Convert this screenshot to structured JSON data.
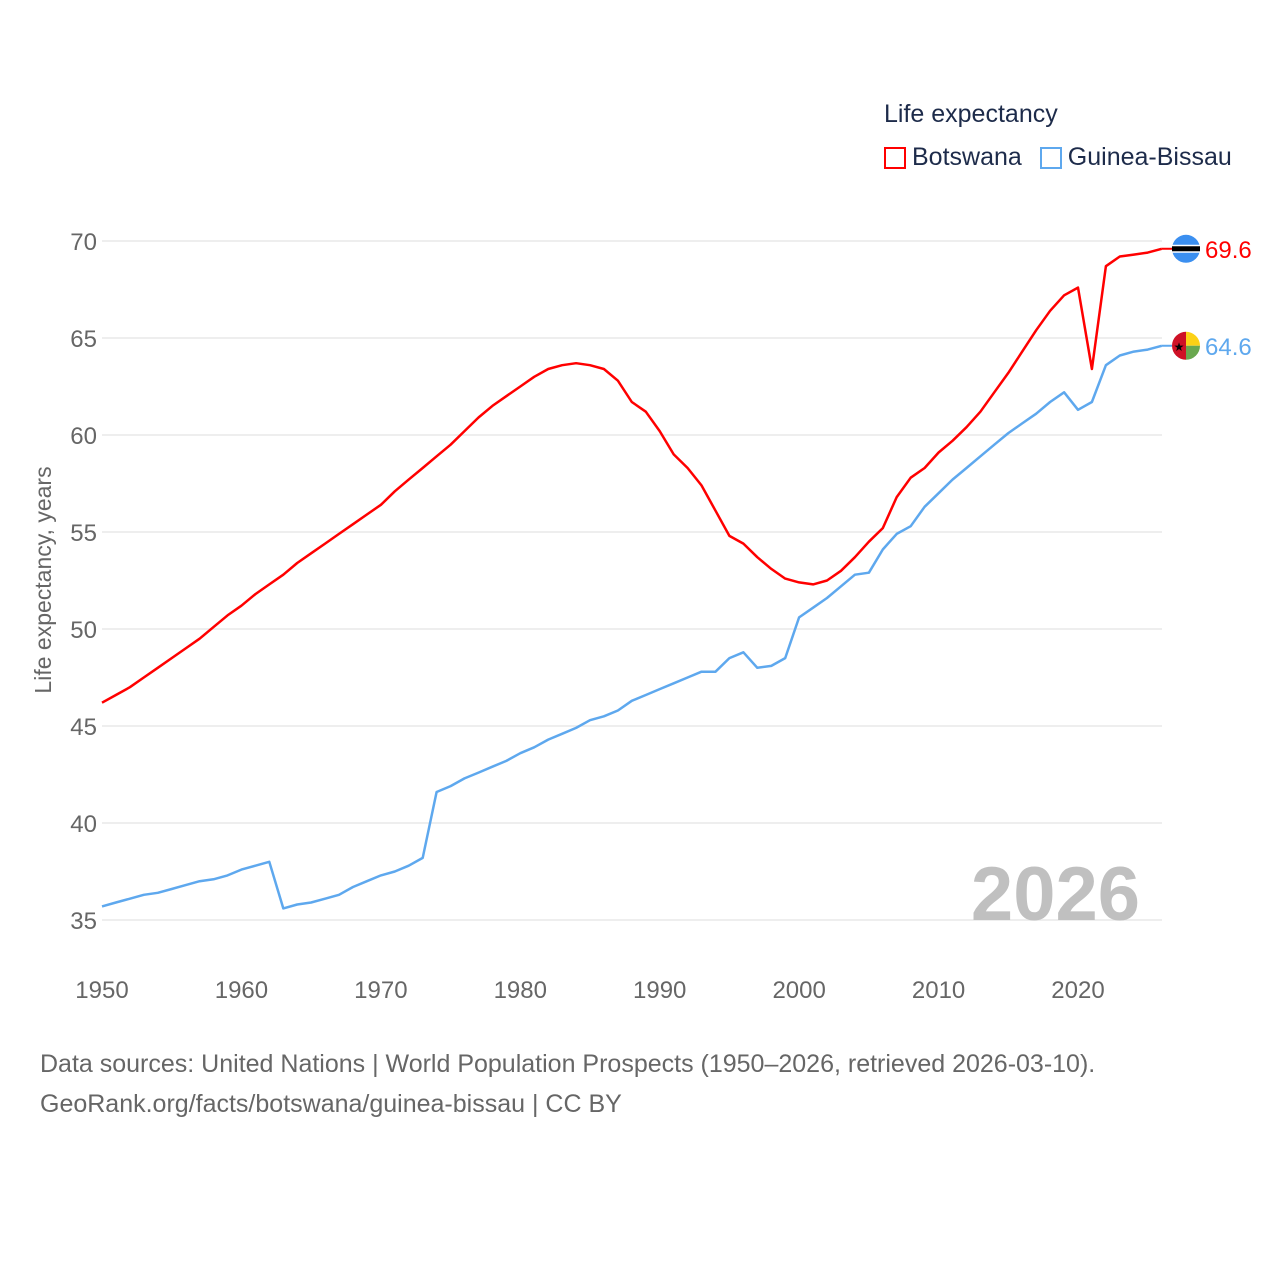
{
  "chart_data": {
    "type": "line",
    "title": "Life expectancy",
    "ylabel": "Life expectancy, years",
    "xlabel": "",
    "xlim": [
      1950,
      2026
    ],
    "ylim": [
      33,
      70.5
    ],
    "yticks": [
      35,
      40,
      45,
      50,
      55,
      60,
      65,
      70
    ],
    "xticks": [
      1950,
      1960,
      1970,
      1980,
      1990,
      2000,
      2010,
      2020
    ],
    "grid": true,
    "legend_position": "top-right",
    "year_watermark": "2026",
    "x": [
      1950,
      1951,
      1952,
      1953,
      1954,
      1955,
      1956,
      1957,
      1958,
      1959,
      1960,
      1961,
      1962,
      1963,
      1964,
      1965,
      1966,
      1967,
      1968,
      1969,
      1970,
      1971,
      1972,
      1973,
      1974,
      1975,
      1976,
      1977,
      1978,
      1979,
      1980,
      1981,
      1982,
      1983,
      1984,
      1985,
      1986,
      1987,
      1988,
      1989,
      1990,
      1991,
      1992,
      1993,
      1994,
      1995,
      1996,
      1997,
      1998,
      1999,
      2000,
      2001,
      2002,
      2003,
      2004,
      2005,
      2006,
      2007,
      2008,
      2009,
      2010,
      2011,
      2012,
      2013,
      2014,
      2015,
      2016,
      2017,
      2018,
      2019,
      2020,
      2021,
      2022,
      2023,
      2024,
      2025,
      2026
    ],
    "series": [
      {
        "name": "Botswana",
        "color": "#ff0000",
        "end_label": "69.6",
        "values": [
          46.2,
          46.6,
          47.0,
          47.5,
          48.0,
          48.5,
          49.0,
          49.5,
          50.1,
          50.7,
          51.2,
          51.8,
          52.3,
          52.8,
          53.4,
          53.9,
          54.4,
          54.9,
          55.4,
          55.9,
          56.4,
          57.1,
          57.7,
          58.3,
          58.9,
          59.5,
          60.2,
          60.9,
          61.5,
          62.0,
          62.5,
          63.0,
          63.4,
          63.6,
          63.7,
          63.6,
          63.4,
          62.8,
          61.7,
          61.2,
          60.2,
          59.0,
          58.3,
          57.4,
          56.1,
          54.8,
          54.4,
          53.7,
          53.1,
          52.6,
          52.4,
          52.3,
          52.5,
          53.0,
          53.7,
          54.5,
          55.2,
          56.8,
          57.8,
          58.3,
          59.1,
          59.7,
          60.4,
          61.2,
          62.2,
          63.2,
          64.3,
          65.4,
          66.4,
          67.2,
          67.6,
          63.4,
          68.7,
          69.2,
          69.3,
          69.4,
          69.6
        ]
      },
      {
        "name": "Guinea-Bissau",
        "color": "#5ea8ee",
        "end_label": "64.6",
        "values": [
          35.7,
          35.9,
          36.1,
          36.3,
          36.4,
          36.6,
          36.8,
          37.0,
          37.1,
          37.3,
          37.6,
          37.8,
          38.0,
          35.6,
          35.8,
          35.9,
          36.1,
          36.3,
          36.7,
          37.0,
          37.3,
          37.5,
          37.8,
          38.2,
          41.6,
          41.9,
          42.3,
          42.6,
          42.9,
          43.2,
          43.6,
          43.9,
          44.3,
          44.6,
          44.9,
          45.3,
          45.5,
          45.8,
          46.3,
          46.6,
          46.9,
          47.2,
          47.5,
          47.8,
          47.8,
          48.5,
          48.8,
          48.0,
          48.1,
          48.5,
          50.6,
          51.1,
          51.6,
          52.2,
          52.8,
          52.9,
          54.1,
          54.9,
          55.3,
          56.3,
          57.0,
          57.7,
          58.3,
          58.9,
          59.5,
          60.1,
          60.6,
          61.1,
          61.7,
          62.2,
          61.3,
          61.7,
          63.6,
          64.1,
          64.3,
          64.4,
          64.6
        ]
      }
    ]
  },
  "footer": {
    "line1": "Data sources: United Nations | World Population Prospects (1950–2026, retrieved 2026-03-10).",
    "line2": "GeoRank.org/facts/botswana/guinea-bissau | CC BY"
  }
}
